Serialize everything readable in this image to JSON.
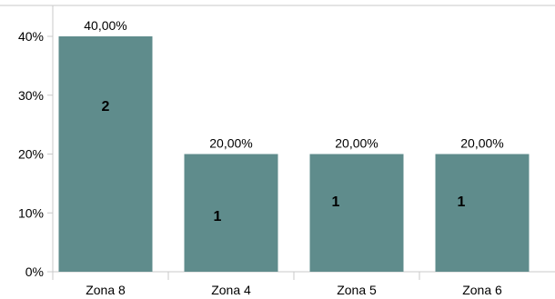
{
  "chart_data": {
    "type": "bar",
    "categories": [
      "Zona 8",
      "Zona 4",
      "Zona 5",
      "Zona 6"
    ],
    "values": [
      40,
      20,
      20,
      20
    ],
    "data_labels": [
      "40,00%",
      "20,00%",
      "20,00%",
      "20,00%"
    ],
    "counts": [
      "2",
      "1",
      "1",
      "1"
    ],
    "title": "",
    "xlabel": "",
    "ylabel": "",
    "ylim": [
      0,
      40
    ],
    "y_ticks": [
      {
        "value": 0,
        "label": "0%"
      },
      {
        "value": 10,
        "label": "10%"
      },
      {
        "value": 20,
        "label": "20%"
      },
      {
        "value": 30,
        "label": "30%"
      },
      {
        "value": 40,
        "label": "40%"
      }
    ],
    "grid": false,
    "bar_color": "#5f8c8c",
    "axis_color": "#c8c8c8"
  }
}
